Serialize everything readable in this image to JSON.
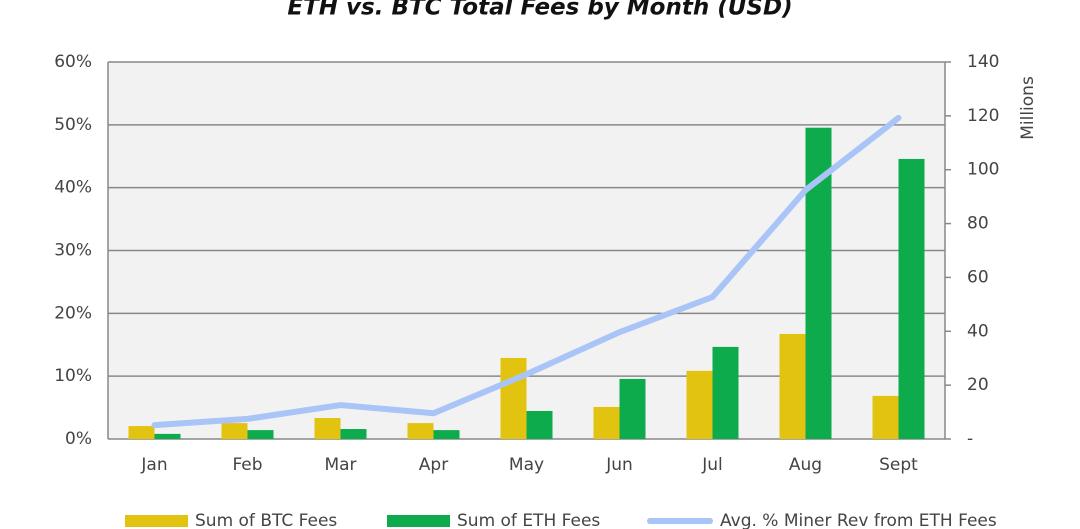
{
  "chart_data": {
    "type": "bar",
    "title": "ETH vs. BTC Total Fees by Month (USD)",
    "y2label": "Millions",
    "categories": [
      "Jan",
      "Feb",
      "Mar",
      "Apr",
      "May",
      "Jun",
      "Jul",
      "Aug",
      "Sept"
    ],
    "series": [
      {
        "name": "Sum of BTC Fees",
        "type": "bar",
        "axis": "y2",
        "color": "#e2c30f",
        "values": [
          4.8,
          5.9,
          7.8,
          5.9,
          30.1,
          11.9,
          25.3,
          39.0,
          16.0
        ]
      },
      {
        "name": "Sum of ETH Fees",
        "type": "bar",
        "axis": "y2",
        "color": "#0eab4d",
        "values": [
          1.9,
          3.3,
          3.7,
          3.3,
          10.4,
          22.3,
          34.2,
          115.6,
          104.0
        ]
      },
      {
        "name": "Avg. % Miner Rev from ETH Fees",
        "type": "line",
        "color": "#a9c4f7",
        "values": [
          2.2,
          3.2,
          5.4,
          4.1,
          10.3,
          17.0,
          22.6,
          39.6,
          51.1
        ]
      }
    ],
    "ylim": [
      0,
      60
    ],
    "yticks": [
      {
        "value": 0,
        "label": "0%"
      },
      {
        "value": 10,
        "label": "10%"
      },
      {
        "value": 20,
        "label": "20%"
      },
      {
        "value": 30,
        "label": "30%"
      },
      {
        "value": 40,
        "label": "40%"
      },
      {
        "value": 50,
        "label": "50%"
      },
      {
        "value": 60,
        "label": "60%"
      }
    ],
    "y2lim": [
      0,
      140
    ],
    "y2ticks": [
      {
        "value": 0,
        "label": "-"
      },
      20,
      40,
      60,
      80,
      100,
      120,
      140
    ],
    "grid": true
  }
}
